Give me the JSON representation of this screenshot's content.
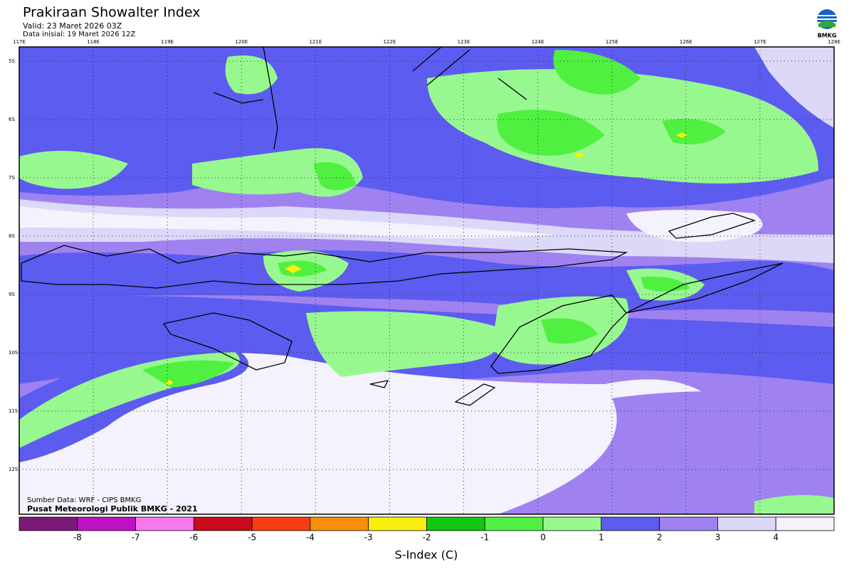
{
  "header": {
    "title": "Prakiraan Showalter Index",
    "valid": "Valid: 23 Maret 2026 03Z",
    "init": "Data inisial: 19 Maret 2026 12Z",
    "logo": "BMKG"
  },
  "map": {
    "lon_labels": [
      "117E",
      "118E",
      "119E",
      "120E",
      "121E",
      "122E",
      "123E",
      "124E",
      "125E",
      "126E",
      "127E",
      "128E"
    ],
    "lat_labels": [
      "5S",
      "6S",
      "7S",
      "8S",
      "9S",
      "10S",
      "11S",
      "12S"
    ],
    "source": "Sumber Data: WRF - CIPS BMKG",
    "credit": "Pusat Meteorologi Publik BMKG - 2021"
  },
  "colorbar": {
    "colors": [
      "#7a1a78",
      "#c010c8",
      "#f878f0",
      "#c80c1c",
      "#f83c14",
      "#f8900c",
      "#f8f00c",
      "#10c810",
      "#50f040",
      "#98f890",
      "#5c5cf0",
      "#9f82f0",
      "#dcd8f8",
      "#f4f2fc"
    ],
    "ticks": [
      -8,
      -7,
      -6,
      -5,
      -4,
      -3,
      -2,
      -1,
      0,
      1,
      2,
      3,
      4
    ],
    "label": "S-Index (C)"
  }
}
